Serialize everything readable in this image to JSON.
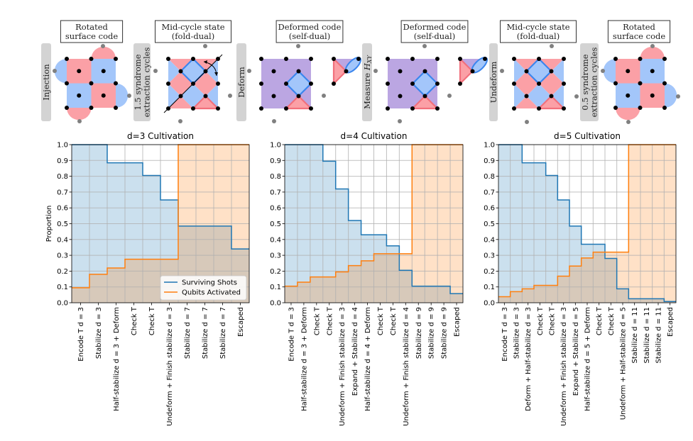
{
  "diagram": {
    "panels": [
      {
        "title": [
          "Rotated",
          "surface code"
        ],
        "kind": "rotated"
      },
      {
        "title": [
          "Mid-cycle state",
          "(fold-dual)"
        ],
        "kind": "midcycle",
        "fold_line": true
      },
      {
        "title": [
          "Deformed code",
          "(self-dual)"
        ],
        "kind": "deformed"
      },
      {
        "title": [
          "Deformed code",
          "(self-dual)"
        ],
        "kind": "deformed"
      },
      {
        "title": [
          "Mid-cycle state",
          "(fold-dual)"
        ],
        "kind": "midcycle",
        "fold_line": false
      },
      {
        "title": [
          "Rotated",
          "surface code"
        ],
        "kind": "rotated"
      }
    ],
    "steps": [
      {
        "lines": [
          "Injection"
        ]
      },
      {
        "lines": [
          "1.5 syndrome",
          "extraction cycles"
        ]
      },
      {
        "lines": [
          "Deform"
        ]
      },
      {
        "lines": [
          "Measure H_XY"
        ],
        "math": "H",
        "sub": "XY",
        "prefix": "Measure "
      },
      {
        "lines": [
          "Undeform"
        ]
      },
      {
        "lines": [
          "0.5 syndrome",
          "extraction cycles"
        ]
      }
    ],
    "colors": {
      "red": "#fba0a6",
      "blue": "#a3c6fa",
      "purple": "#bba6e2",
      "blue_edge": "#3b86ee",
      "red_edge": "#f2707c",
      "qubit": "#000000",
      "ancilla": "#808080"
    }
  },
  "legend": {
    "surviving": "Surviving Shots",
    "qubits": "Qubits Activated"
  },
  "colors": {
    "surviving": "#1f77b4",
    "qubits": "#ff7f0e"
  },
  "chart_data": [
    {
      "type": "area",
      "title": "d=3 Cultivation",
      "ylabel": "Proportion",
      "ylim": [
        0,
        1
      ],
      "yticks": [
        "0.0",
        "0.1",
        "0.2",
        "0.3",
        "0.4",
        "0.5",
        "0.6",
        "0.7",
        "0.8",
        "0.9",
        "1.0"
      ],
      "grid": true,
      "legend_placement": "lower-right",
      "categories": [
        "Encode T d = 3",
        "Stabilize d = 3",
        "Half-stabilize d = 3 + Deform",
        "Check T",
        "Check T",
        "Undeform + Finish stabilize d = 3",
        "Stabilize d = 7",
        "Stabilize d = 7",
        "Stabilize d = 7",
        "Escaped"
      ],
      "series": [
        {
          "name": "Surviving Shots",
          "values": [
            1.0,
            1.0,
            0.885,
            0.885,
            0.805,
            0.65,
            0.485,
            0.485,
            0.485,
            0.34
          ]
        },
        {
          "name": "Qubits Activated",
          "values": [
            0.095,
            0.18,
            0.22,
            0.275,
            0.275,
            0.275,
            1.0,
            1.0,
            1.0,
            1.0
          ]
        }
      ]
    },
    {
      "type": "area",
      "title": "d=4 Cultivation",
      "ylabel": "",
      "ylim": [
        0,
        1
      ],
      "yticks": [
        "0.0",
        "0.1",
        "0.2",
        "0.3",
        "0.4",
        "0.5",
        "0.6",
        "0.7",
        "0.8",
        "0.9",
        "1.0"
      ],
      "grid": true,
      "categories": [
        "Encode T d = 3",
        "Half-stabilize d = 3 + Deform",
        "Check T",
        "Check T",
        "Undeform + Finish stabilize d = 3",
        "Expand + Stabilize d = 4",
        "Half-stabilize d = 4 + Deform",
        "Check T",
        "Check T",
        "Undeform + Finish stabilize d = 4",
        "Stabilize d = 9",
        "Stabilize d = 9",
        "Stabilize d = 9",
        "Escaped"
      ],
      "series": [
        {
          "name": "Surviving Shots",
          "values": [
            1.0,
            1.0,
            1.0,
            0.895,
            0.72,
            0.52,
            0.43,
            0.43,
            0.36,
            0.205,
            0.105,
            0.105,
            0.105,
            0.058
          ]
        },
        {
          "name": "Qubits Activated",
          "values": [
            0.105,
            0.13,
            0.163,
            0.163,
            0.195,
            0.235,
            0.265,
            0.31,
            0.31,
            0.31,
            1.0,
            1.0,
            1.0,
            1.0
          ]
        }
      ]
    },
    {
      "type": "area",
      "title": "d=5 Cultivation",
      "ylabel": "",
      "ylim": [
        0,
        1
      ],
      "yticks": [
        "0.0",
        "0.1",
        "0.2",
        "0.3",
        "0.4",
        "0.5",
        "0.6",
        "0.7",
        "0.8",
        "0.9",
        "1.0"
      ],
      "grid": true,
      "categories": [
        "Encode T d = 3",
        "Stabilize d = 3",
        "Deform + Half-stabilize d = 3",
        "Check T",
        "Check T",
        "Undeform + Finish stabilize d = 3",
        "Expand + Stabilize d = 5",
        "Half-stabilize d = 5 + Deform",
        "Check T",
        "Check T",
        "Undeform + Half-stabilize d = 5",
        "Stabilize d = 11",
        "Stabilize d = 11",
        "Stabilize d = 11",
        "Escaped"
      ],
      "series": [
        {
          "name": "Surviving Shots",
          "values": [
            1.0,
            1.0,
            0.885,
            0.885,
            0.805,
            0.65,
            0.485,
            0.37,
            0.37,
            0.28,
            0.088,
            0.025,
            0.025,
            0.025,
            0.008
          ]
        },
        {
          "name": "Qubits Activated",
          "values": [
            0.038,
            0.07,
            0.088,
            0.11,
            0.11,
            0.168,
            0.232,
            0.283,
            0.32,
            0.32,
            0.32,
            1.0,
            1.0,
            1.0,
            1.0
          ]
        }
      ]
    }
  ]
}
